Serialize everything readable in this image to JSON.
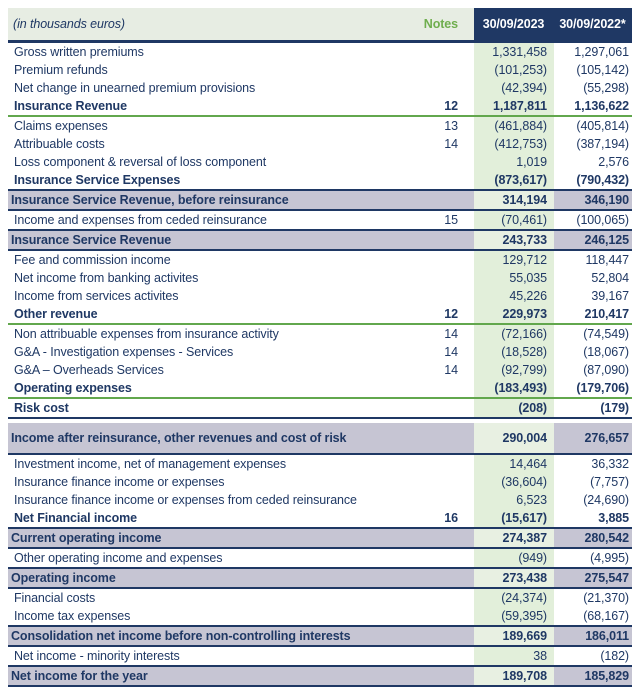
{
  "table": {
    "header": {
      "caption": "(in thousands euros)",
      "notes_label": "Notes",
      "col_2023": "30/09/2023",
      "col_2022": "30/09/2022*"
    },
    "colors": {
      "navy": "#1F3864",
      "header_band": "#E7EDE3",
      "green_column": "#E2EFDA",
      "lavender_band": "#C6C5D3",
      "green_accent": "#62A74D",
      "notes_green": "#6FAE4E"
    },
    "rows": [
      {
        "label": "Gross written premiums",
        "note": "",
        "v2023": "1,331,458",
        "v2022": "1,297,061",
        "style": "item",
        "sep": ""
      },
      {
        "label": "Premium refunds",
        "note": "",
        "v2023": "(101,253)",
        "v2022": "(105,142)",
        "style": "item",
        "sep": ""
      },
      {
        "label": "Net change in unearned premium provisions",
        "note": "",
        "v2023": "(42,394)",
        "v2022": "(55,298)",
        "style": "item",
        "sep": ""
      },
      {
        "label": "Insurance Revenue",
        "note": "12",
        "v2023": "1,187,811",
        "v2022": "1,136,622",
        "style": "bold",
        "sep": "green"
      },
      {
        "label": "Claims expenses",
        "note": "13",
        "v2023": "(461,884)",
        "v2022": "(405,814)",
        "style": "item",
        "sep": ""
      },
      {
        "label": "Attribuable costs",
        "note": "14",
        "v2023": "(412,753)",
        "v2022": "(387,194)",
        "style": "item",
        "sep": ""
      },
      {
        "label": "Loss component & reversal of loss component",
        "note": "",
        "v2023": "1,019",
        "v2022": "2,576",
        "style": "item",
        "sep": ""
      },
      {
        "label": "Insurance Service Expenses",
        "note": "",
        "v2023": "(873,617)",
        "v2022": "(790,432)",
        "style": "bold",
        "sep": ""
      },
      {
        "label": "Insurance Service Revenue, before reinsurance",
        "note": "",
        "v2023": "314,194",
        "v2022": "346,190",
        "style": "subtotal",
        "sep": ""
      },
      {
        "label": "Income and expenses from ceded reinsurance",
        "note": "15",
        "v2023": "(70,461)",
        "v2022": "(100,065)",
        "style": "item",
        "sep": ""
      },
      {
        "label": "Insurance Service Revenue",
        "note": "",
        "v2023": "243,733",
        "v2022": "246,125",
        "style": "subtotal",
        "sep": ""
      },
      {
        "label": "Fee and commission income",
        "note": "",
        "v2023": "129,712",
        "v2022": "118,447",
        "style": "item",
        "sep": ""
      },
      {
        "label": "Net income from banking activites",
        "note": "",
        "v2023": "55,035",
        "v2022": "52,804",
        "style": "item",
        "sep": ""
      },
      {
        "label": "Income from services activites",
        "note": "",
        "v2023": "45,226",
        "v2022": "39,167",
        "style": "item",
        "sep": ""
      },
      {
        "label": "Other revenue",
        "note": "12",
        "v2023": "229,973",
        "v2022": "210,417",
        "style": "bold",
        "sep": "green"
      },
      {
        "label": "Non attribuable expenses from insurance activity",
        "note": "14",
        "v2023": "(72,166)",
        "v2022": "(74,549)",
        "style": "item",
        "sep": ""
      },
      {
        "label": "G&A - Investigation expenses - Services",
        "note": "14",
        "v2023": "(18,528)",
        "v2022": "(18,067)",
        "style": "item",
        "sep": ""
      },
      {
        "label": "G&A – Overheads Services",
        "note": "14",
        "v2023": "(92,799)",
        "v2022": "(87,090)",
        "style": "item",
        "sep": ""
      },
      {
        "label": "Operating expenses",
        "note": "",
        "v2023": "(183,493)",
        "v2022": "(179,706)",
        "style": "bold",
        "sep": "green"
      },
      {
        "label": "Risk cost",
        "note": "",
        "v2023": "(208)",
        "v2022": "(179)",
        "style": "bold",
        "sep": "navy"
      },
      {
        "label": "Income after reinsurance, other revenues and cost of risk",
        "note": "",
        "v2023": "290,004",
        "v2022": "276,657",
        "style": "subtotal_tall",
        "sep": ""
      },
      {
        "label": "Investment income, net of management expenses",
        "note": "",
        "v2023": "14,464",
        "v2022": "36,332",
        "style": "item",
        "sep": ""
      },
      {
        "label": "Insurance finance income or expenses",
        "note": "",
        "v2023": "(36,604)",
        "v2022": "(7,757)",
        "style": "item",
        "sep": ""
      },
      {
        "label": "Insurance finance income or expenses from ceded reinsurance",
        "note": "",
        "v2023": "6,523",
        "v2022": "(24,690)",
        "style": "item",
        "sep": ""
      },
      {
        "label": "Net Financial income",
        "note": "16",
        "v2023": "(15,617)",
        "v2022": "3,885",
        "style": "bold",
        "sep": ""
      },
      {
        "label": "Current operating income",
        "note": "",
        "v2023": "274,387",
        "v2022": "280,542",
        "style": "subtotal",
        "sep": ""
      },
      {
        "label": "Other operating income and expenses",
        "note": "",
        "v2023": "(949)",
        "v2022": "(4,995)",
        "style": "item",
        "sep": ""
      },
      {
        "label": "Operating income",
        "note": "",
        "v2023": "273,438",
        "v2022": "275,547",
        "style": "subtotal",
        "sep": ""
      },
      {
        "label": "Financial costs",
        "note": "",
        "v2023": "(24,374)",
        "v2022": "(21,370)",
        "style": "item",
        "sep": ""
      },
      {
        "label": "Income tax expenses",
        "note": "",
        "v2023": "(59,395)",
        "v2022": "(68,167)",
        "style": "item",
        "sep": ""
      },
      {
        "label": "Consolidation net income before non-controlling interests",
        "note": "",
        "v2023": "189,669",
        "v2022": "186,011",
        "style": "subtotal",
        "sep": ""
      },
      {
        "label": "Net income - minority interests",
        "note": "",
        "v2023": "38",
        "v2022": "(182)",
        "style": "item",
        "sep": ""
      },
      {
        "label": "Net income for the year",
        "note": "",
        "v2023": "189,708",
        "v2022": "185,829",
        "style": "subtotal",
        "sep": ""
      }
    ]
  }
}
